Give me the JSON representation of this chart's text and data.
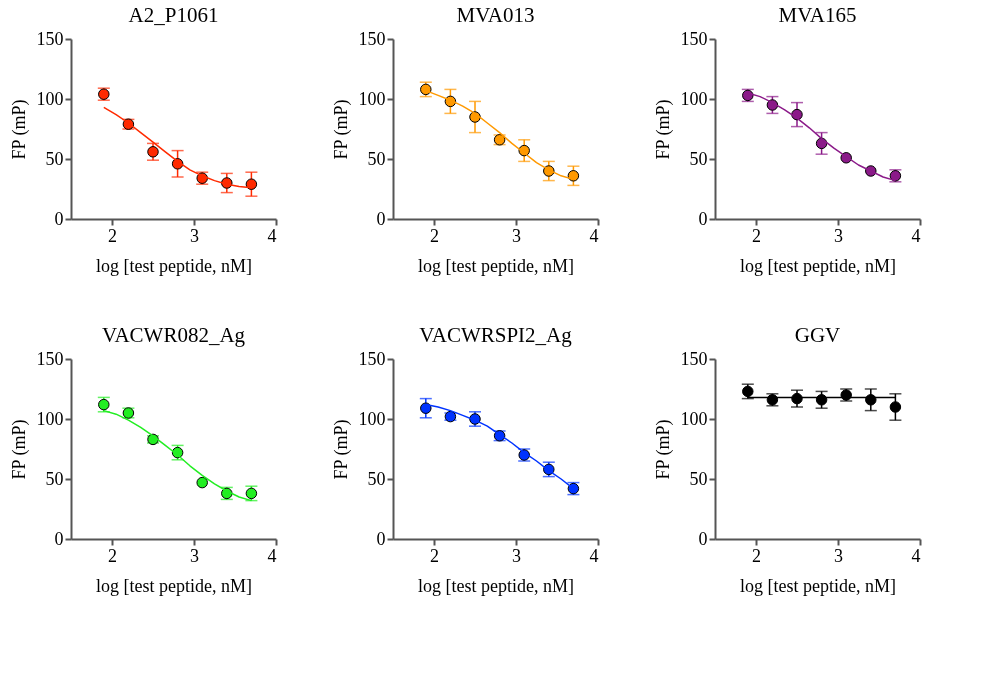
{
  "chart_data": [
    {
      "type": "scatter",
      "title": "A2_P1061",
      "xlabel": "log [test peptide, nM]",
      "ylabel": "FP (mP)",
      "xlim": [
        1.5,
        4
      ],
      "xticks": [
        2,
        3,
        4
      ],
      "ylim": [
        0,
        150
      ],
      "yticks": [
        0,
        50,
        100,
        150
      ],
      "grid": false,
      "series": [
        {
          "marker": "circle",
          "color": "#ff2a00",
          "x": [
            1.9,
            2.2,
            2.5,
            2.8,
            3.1,
            3.4,
            3.7
          ],
          "values": [
            104,
            79,
            56,
            46,
            34,
            30,
            29
          ],
          "errors": [
            5,
            4,
            7,
            11,
            5,
            8,
            10
          ]
        },
        {
          "type": "line",
          "color": "#ff2a00",
          "x": [
            1.9,
            2.05,
            2.2,
            2.35,
            2.5,
            2.65,
            2.8,
            2.95,
            3.1,
            3.25,
            3.4,
            3.55,
            3.7
          ],
          "values": [
            93,
            87,
            80,
            72,
            64,
            56,
            48,
            41,
            36,
            32,
            29,
            27,
            26
          ]
        }
      ]
    },
    {
      "type": "scatter",
      "title": "MVA013",
      "xlabel": "log [test peptide, nM]",
      "ylabel": "FP (mP)",
      "xlim": [
        1.5,
        4
      ],
      "xticks": [
        2,
        3,
        4
      ],
      "ylim": [
        0,
        150
      ],
      "yticks": [
        0,
        50,
        100,
        150
      ],
      "grid": false,
      "series": [
        {
          "marker": "circle",
          "color": "#ff9900",
          "x": [
            1.9,
            2.2,
            2.5,
            2.8,
            3.1,
            3.4,
            3.7
          ],
          "values": [
            108,
            98,
            85,
            66,
            57,
            40,
            36
          ],
          "errors": [
            6,
            10,
            13,
            4,
            9,
            8,
            8
          ]
        },
        {
          "type": "line",
          "color": "#ff9900",
          "x": [
            1.9,
            2.05,
            2.2,
            2.35,
            2.5,
            2.65,
            2.8,
            2.95,
            3.1,
            3.25,
            3.4,
            3.55,
            3.7
          ],
          "values": [
            107,
            103,
            99,
            94,
            88,
            80,
            72,
            63,
            55,
            47,
            41,
            36,
            33
          ]
        }
      ]
    },
    {
      "type": "scatter",
      "title": "MVA165",
      "xlabel": "log [test peptide, nM]",
      "ylabel": "FP (mP)",
      "xlim": [
        1.5,
        4
      ],
      "xticks": [
        2,
        3,
        4
      ],
      "ylim": [
        0,
        150
      ],
      "yticks": [
        0,
        50,
        100,
        150
      ],
      "grid": false,
      "series": [
        {
          "marker": "circle",
          "color": "#8b1a89",
          "x": [
            1.9,
            2.2,
            2.5,
            2.8,
            3.1,
            3.4,
            3.7
          ],
          "values": [
            103,
            95,
            87,
            63,
            51,
            40,
            36
          ],
          "errors": [
            5,
            7,
            10,
            9,
            null,
            null,
            5
          ]
        },
        {
          "type": "line",
          "color": "#8b1a89",
          "x": [
            1.9,
            2.05,
            2.2,
            2.35,
            2.5,
            2.65,
            2.8,
            2.95,
            3.1,
            3.25,
            3.4,
            3.55,
            3.7
          ],
          "values": [
            105,
            102,
            97,
            91,
            84,
            76,
            67,
            59,
            52,
            45,
            40,
            35,
            32
          ]
        }
      ]
    },
    {
      "type": "scatter",
      "title": "VACWR082_Ag",
      "xlabel": "log [test peptide, nM]",
      "ylabel": "FP (mP)",
      "xlim": [
        1.5,
        4
      ],
      "xticks": [
        2,
        3,
        4
      ],
      "ylim": [
        0,
        150
      ],
      "yticks": [
        0,
        50,
        100,
        150
      ],
      "grid": false,
      "series": [
        {
          "marker": "circle",
          "color": "#22ee22",
          "x": [
            1.9,
            2.2,
            2.5,
            2.8,
            3.1,
            3.4,
            3.7
          ],
          "values": [
            112,
            105,
            83,
            72,
            47,
            38,
            38
          ],
          "errors": [
            6,
            4,
            3,
            6,
            null,
            5,
            6
          ]
        },
        {
          "type": "line",
          "color": "#22ee22",
          "x": [
            1.9,
            2.05,
            2.2,
            2.35,
            2.5,
            2.65,
            2.8,
            2.95,
            3.1,
            3.25,
            3.4,
            3.55,
            3.7
          ],
          "values": [
            107,
            104,
            99,
            93,
            86,
            78,
            70,
            61,
            53,
            46,
            40,
            35,
            32
          ]
        }
      ]
    },
    {
      "type": "scatter",
      "title": "VACWRSPI2_Ag",
      "xlabel": "log [test peptide, nM]",
      "ylabel": "FP (mP)",
      "xlim": [
        1.5,
        4
      ],
      "xticks": [
        2,
        3,
        4
      ],
      "ylim": [
        0,
        150
      ],
      "yticks": [
        0,
        50,
        100,
        150
      ],
      "grid": false,
      "series": [
        {
          "marker": "circle",
          "color": "#0033ff",
          "x": [
            1.9,
            2.2,
            2.5,
            2.8,
            3.1,
            3.4,
            3.7
          ],
          "values": [
            109,
            102,
            100,
            86,
            70,
            58,
            42
          ],
          "errors": [
            8,
            3,
            6,
            4,
            5,
            6,
            5
          ]
        },
        {
          "type": "line",
          "color": "#0033ff",
          "x": [
            1.9,
            2.05,
            2.2,
            2.35,
            2.5,
            2.65,
            2.8,
            2.95,
            3.1,
            3.25,
            3.4,
            3.55,
            3.7
          ],
          "values": [
            112,
            110,
            107,
            103,
            99,
            94,
            87,
            80,
            72,
            65,
            57,
            50,
            42
          ]
        }
      ]
    },
    {
      "type": "scatter",
      "title": "GGV",
      "xlabel": "log [test peptide, nM]",
      "ylabel": "FP (mP)",
      "xlim": [
        1.5,
        4
      ],
      "xticks": [
        2,
        3,
        4
      ],
      "ylim": [
        0,
        150
      ],
      "yticks": [
        0,
        50,
        100,
        150
      ],
      "grid": false,
      "series": [
        {
          "marker": "circle",
          "color": "#000000",
          "x": [
            1.9,
            2.2,
            2.5,
            2.8,
            3.1,
            3.4,
            3.7
          ],
          "values": [
            123,
            116,
            117,
            116,
            120,
            116,
            110
          ],
          "errors": [
            6,
            5,
            7,
            7,
            5,
            9,
            11
          ]
        },
        {
          "type": "line",
          "color": "#000000",
          "x": [
            1.9,
            3.7
          ],
          "values": [
            118,
            118
          ]
        }
      ]
    }
  ]
}
